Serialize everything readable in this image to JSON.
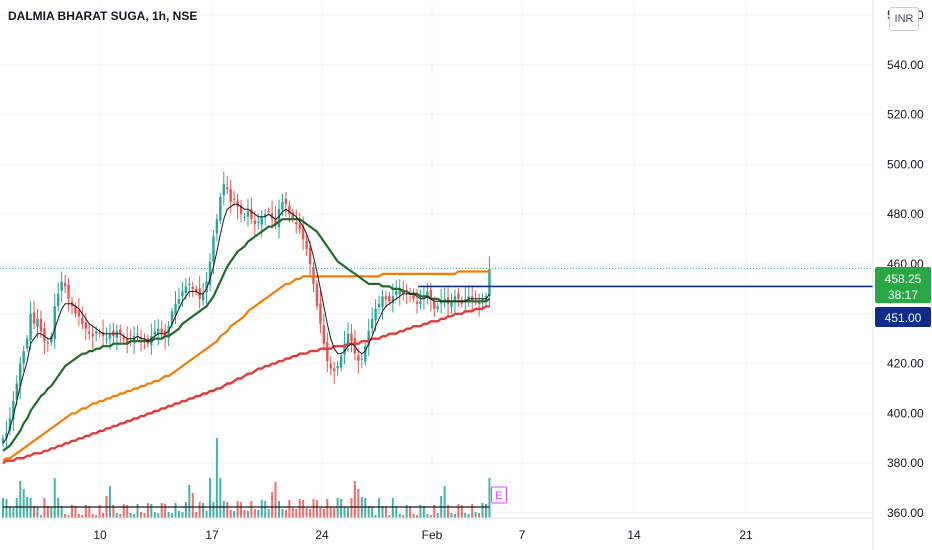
{
  "header": {
    "title": "DALMIA BHARAT SUGA, 1h, NSE",
    "currency": "INR"
  },
  "colors": {
    "up": "#26a69a",
    "down": "#ef5350",
    "ema_fast": "#1b1b1b",
    "ema_mid": "#1e6b2a",
    "ema_slow": "#f57c00",
    "ema_long": "#e53935",
    "price_line": "#0d2c8c",
    "last_price_bg": "#28a745",
    "level_bg": "#0d2c8c"
  },
  "chart_data": {
    "type": "candlestick",
    "title": "DALMIA BHARAT SUGA, 1h, NSE",
    "y_axis": {
      "min": 358,
      "max": 566,
      "ticks": [
        "560.00",
        "540.00",
        "520.00",
        "500.00",
        "480.00",
        "460.00",
        "440.00",
        "420.00",
        "400.00",
        "380.00",
        "360.00"
      ]
    },
    "x_axis": {
      "ticks": [
        "10",
        "17",
        "24",
        "Feb",
        "7",
        "14",
        "21"
      ],
      "tick_dates": [
        "2025-01-10",
        "2025-01-17",
        "2025-01-24",
        "2025-02-01",
        "2025-02-07",
        "2025-02-14",
        "2025-02-21"
      ]
    },
    "last_price": "458.25",
    "countdown": "38:17",
    "level": "451.00",
    "level_value": 451,
    "earnings_marker": "E",
    "closes": [
      390,
      392,
      398,
      405,
      412,
      420,
      425,
      430,
      440,
      436,
      438,
      433,
      429,
      428,
      431,
      443,
      448,
      453,
      451,
      446,
      443,
      440,
      439,
      436,
      434,
      432,
      431,
      433,
      432,
      431,
      430,
      432,
      431,
      433,
      432,
      430,
      428,
      429,
      431,
      432,
      430,
      429,
      428,
      431,
      433,
      434,
      432,
      431,
      435,
      441,
      444,
      446,
      449,
      451,
      452,
      450,
      449,
      446,
      448,
      453,
      461,
      471,
      478,
      487,
      492,
      490,
      485,
      486,
      483,
      480,
      479,
      481,
      478,
      476,
      477,
      479,
      480,
      481,
      478,
      476,
      482,
      485,
      484,
      480,
      478,
      476,
      474,
      470,
      466,
      460,
      452,
      443,
      436,
      428,
      421,
      418,
      417,
      419,
      423,
      428,
      432,
      429,
      424,
      421,
      422,
      427,
      433,
      438,
      442,
      444,
      447,
      446,
      445,
      447,
      449,
      450,
      448,
      449,
      448,
      446,
      444,
      445,
      447,
      449,
      446,
      442,
      443,
      445,
      446,
      444,
      445,
      447,
      446,
      444,
      446,
      447,
      445,
      446,
      444,
      446,
      447,
      458
    ],
    "ema_fast": [
      388,
      390,
      394,
      399,
      405,
      411,
      416,
      421,
      428,
      430,
      432,
      432,
      431,
      430,
      430,
      434,
      438,
      442,
      444,
      444,
      444,
      443,
      442,
      440,
      438,
      436,
      435,
      434,
      433,
      432,
      432,
      432,
      432,
      432,
      432,
      431,
      430,
      430,
      430,
      431,
      430,
      430,
      429,
      430,
      431,
      432,
      432,
      432,
      433,
      436,
      439,
      442,
      445,
      447,
      449,
      449,
      449,
      448,
      448,
      450,
      454,
      459,
      465,
      472,
      478,
      482,
      483,
      484,
      484,
      483,
      482,
      482,
      481,
      480,
      479,
      479,
      479,
      480,
      479,
      478,
      479,
      481,
      482,
      481,
      480,
      479,
      477,
      475,
      472,
      468,
      463,
      457,
      450,
      443,
      436,
      430,
      426,
      424,
      424,
      425,
      427,
      428,
      427,
      425,
      424,
      425,
      428,
      431,
      435,
      438,
      441,
      443,
      444,
      445,
      446,
      447,
      448,
      448,
      448,
      448,
      447,
      446,
      446,
      447,
      446,
      445,
      445,
      445,
      445,
      445,
      445,
      445,
      445,
      445,
      445,
      446,
      446,
      446,
      446,
      446,
      446,
      448
    ],
    "ema_mid": [
      385,
      386,
      387,
      389,
      391,
      393,
      396,
      398,
      401,
      403,
      405,
      407,
      408,
      410,
      411,
      413,
      415,
      417,
      419,
      420,
      421,
      422,
      423,
      424,
      424,
      425,
      425,
      426,
      426,
      427,
      427,
      427,
      428,
      428,
      428,
      428,
      428,
      429,
      429,
      429,
      429,
      429,
      429,
      429,
      430,
      430,
      430,
      431,
      431,
      432,
      433,
      434,
      436,
      437,
      438,
      439,
      440,
      441,
      442,
      443,
      445,
      447,
      450,
      453,
      456,
      459,
      461,
      463,
      465,
      466,
      467,
      469,
      470,
      471,
      472,
      473,
      474,
      475,
      475,
      476,
      477,
      478,
      478,
      478,
      478,
      478,
      478,
      477,
      476,
      475,
      474,
      473,
      471,
      469,
      467,
      465,
      463,
      461,
      460,
      459,
      458,
      457,
      456,
      455,
      454,
      453,
      452,
      452,
      452,
      452,
      451,
      451,
      451,
      450,
      450,
      450,
      449,
      449,
      448,
      448,
      448,
      447,
      447,
      447,
      446,
      446,
      446,
      445,
      445,
      445,
      445,
      445,
      445,
      445,
      445,
      445,
      445,
      445,
      445,
      445,
      445,
      446
    ],
    "ema_slow": [
      381,
      382,
      382,
      383,
      384,
      385,
      386,
      387,
      388,
      389,
      390,
      391,
      392,
      393,
      394,
      395,
      396,
      397,
      398,
      399,
      400,
      400,
      401,
      402,
      402,
      403,
      404,
      404,
      405,
      405,
      406,
      406,
      407,
      407,
      408,
      408,
      409,
      409,
      410,
      410,
      411,
      411,
      412,
      412,
      413,
      413,
      414,
      415,
      415,
      416,
      417,
      418,
      419,
      420,
      421,
      422,
      423,
      424,
      425,
      426,
      427,
      428,
      429,
      431,
      432,
      433,
      435,
      436,
      437,
      438,
      439,
      441,
      442,
      443,
      444,
      445,
      446,
      447,
      448,
      449,
      450,
      451,
      452,
      452,
      453,
      454,
      454,
      455,
      455,
      455,
      455,
      455,
      455,
      455,
      455,
      455,
      455,
      455,
      455,
      455,
      455,
      455,
      455,
      455,
      455,
      455,
      455,
      455,
      455,
      455,
      456,
      456,
      456,
      456,
      456,
      456,
      456,
      456,
      456,
      456,
      456,
      456,
      456,
      456,
      456,
      456,
      456,
      456,
      456,
      456,
      456,
      456,
      457,
      457,
      457,
      457,
      457,
      457,
      457,
      457,
      457,
      457
    ],
    "ema_long": [
      380,
      381,
      381,
      381,
      382,
      382,
      382,
      383,
      383,
      384,
      384,
      384,
      385,
      385,
      386,
      386,
      387,
      387,
      388,
      388,
      389,
      389,
      390,
      390,
      391,
      391,
      392,
      392,
      393,
      393,
      394,
      394,
      395,
      395,
      396,
      396,
      397,
      397,
      398,
      398,
      399,
      399,
      400,
      400,
      401,
      401,
      402,
      402,
      403,
      403,
      404,
      404,
      405,
      405,
      406,
      406,
      407,
      407,
      408,
      408,
      409,
      409,
      410,
      410,
      411,
      412,
      412,
      413,
      414,
      414,
      415,
      416,
      416,
      417,
      418,
      418,
      419,
      419,
      420,
      420,
      421,
      421,
      422,
      422,
      423,
      423,
      424,
      424,
      424,
      425,
      425,
      425,
      426,
      426,
      426,
      426,
      427,
      427,
      427,
      427,
      428,
      428,
      428,
      428,
      429,
      429,
      429,
      430,
      430,
      430,
      431,
      431,
      432,
      432,
      432,
      433,
      433,
      434,
      434,
      435,
      435,
      435,
      436,
      436,
      437,
      437,
      437,
      438,
      438,
      439,
      439,
      440,
      440,
      440,
      441,
      441,
      441,
      442,
      442,
      442,
      443,
      443
    ]
  }
}
